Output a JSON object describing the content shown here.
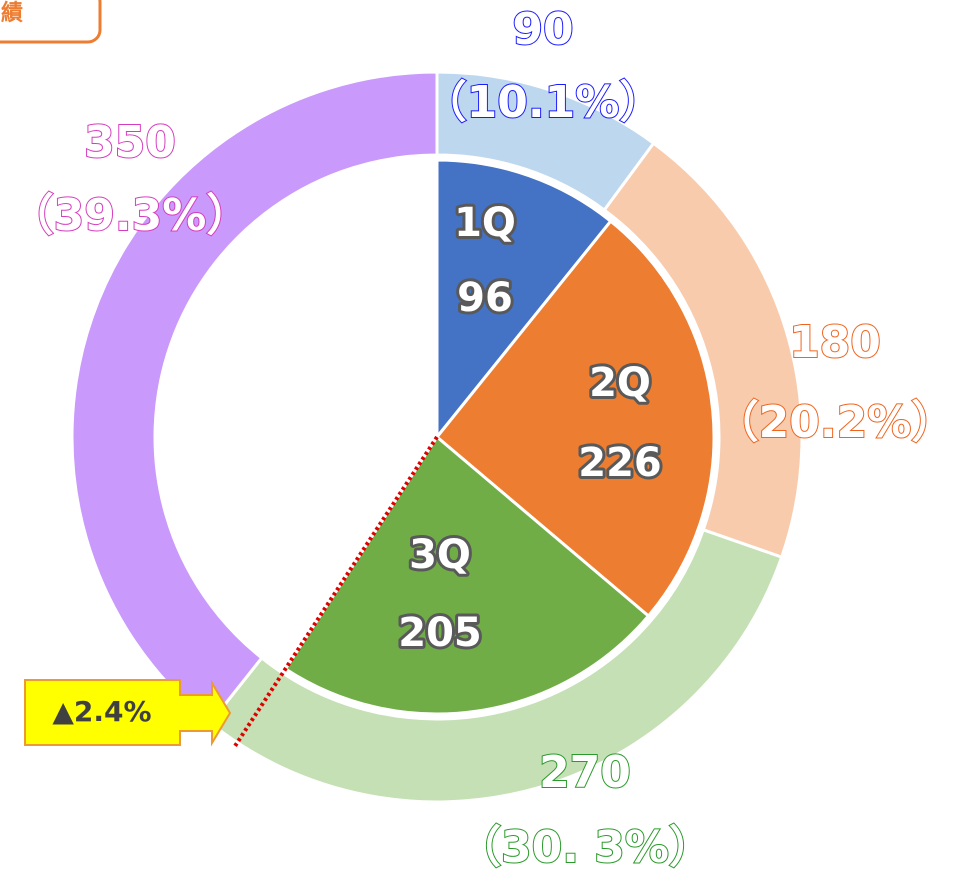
{
  "chart_data": {
    "type": "nested_pie",
    "title": "績",
    "outer": {
      "values": [
        90,
        180,
        270,
        350
      ],
      "colors": [
        "#bdd7ee",
        "#f8cbad",
        "#c5e0b4",
        "#c999fb"
      ],
      "label_colors": [
        "#1a1aff",
        "#f0641e",
        "#2a9a2a",
        "#d63cc0"
      ],
      "share_labels": [
        "（10.1%）",
        "（20.2%）",
        "（30. 3%）",
        "（39.3%）"
      ]
    },
    "inner": {
      "categories": [
        "1Q",
        "2Q",
        "3Q"
      ],
      "values": [
        96,
        226,
        205
      ],
      "colors": [
        "#4472c4",
        "#ed7d31",
        "#70ad47"
      ]
    },
    "annotation": "▲2.4%"
  }
}
